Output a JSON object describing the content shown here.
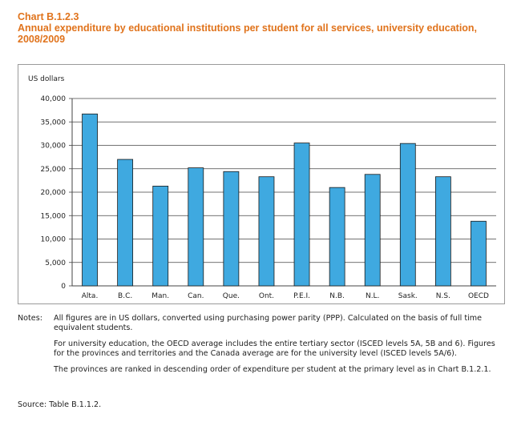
{
  "header": {
    "chart_number": "Chart B.1.2.3",
    "title": "Annual expenditure by educational institutions per student for all services, university education, 2008/2009"
  },
  "chart_data": {
    "type": "bar",
    "ylabel": "US dollars",
    "xlabel": "",
    "categories": [
      "Alta.",
      "B.C.",
      "Man.",
      "Can.",
      "Que.",
      "Ont.",
      "P.E.I.",
      "N.B.",
      "N.L.",
      "Sask.",
      "N.S.",
      "OECD"
    ],
    "values": [
      36700,
      27000,
      21300,
      25200,
      24400,
      23300,
      30500,
      21000,
      23800,
      30400,
      23300,
      13800
    ],
    "ylim": [
      0,
      40000
    ],
    "yticks": [
      0,
      5000,
      10000,
      15000,
      20000,
      25000,
      30000,
      35000,
      40000
    ],
    "ytick_labels": [
      "0",
      "5,000",
      "10,000",
      "15,000",
      "20,000",
      "25,000",
      "30,000",
      "35,000",
      "40,000"
    ],
    "grid": true,
    "bar_color": "#3fa9e0"
  },
  "notes": {
    "label": "Notes:",
    "line1": "All figures are in US dollars, converted using purchasing power parity (PPP). Calculated on the basis of full time equivalent students.",
    "line2": "For university education, the OECD average includes the entire tertiary sector (ISCED levels 5A, 5B and 6). Figures for the provinces and territories and the Canada average are for the university level (ISCED levels 5A/6).",
    "line3": "The provinces are ranked in descending order of expenditure per student at the primary level as in Chart B.1.2.1."
  },
  "source": "Source: Table B.1.1.2."
}
